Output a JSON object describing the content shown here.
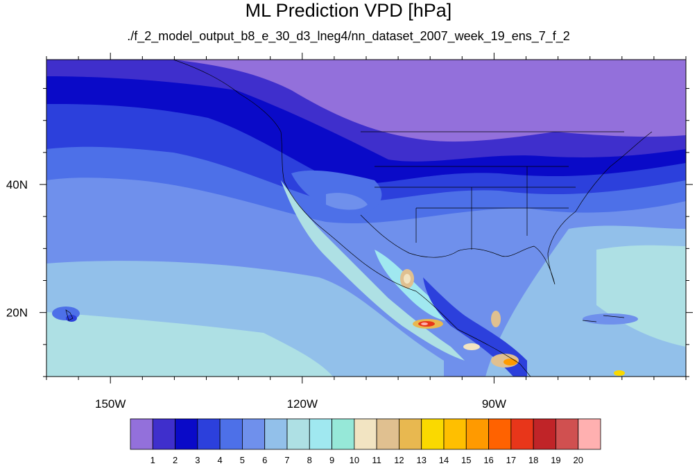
{
  "title": "ML Prediction VPD [hPa]",
  "subtitle": "./f_2_model_output_b8_e_30_d3_lneg4/nn_dataset_2007_week_19_ens_7_f_2",
  "axes": {
    "lat_labels": [
      {
        "text": "40N",
        "lat": 40
      },
      {
        "text": "20N",
        "lat": 20
      }
    ],
    "lon_labels": [
      {
        "text": "150W",
        "lon": -150
      },
      {
        "text": "120W",
        "lon": -120
      },
      {
        "text": "90W",
        "lon": -90
      }
    ],
    "lon_range": [
      -160,
      -60
    ],
    "lat_range": [
      10,
      59.5
    ]
  },
  "colorbar": {
    "colors": [
      "#9370db",
      "#3f2fcc",
      "#0a0ac8",
      "#2c40dc",
      "#4d70e8",
      "#6f90ec",
      "#92c0ea",
      "#aee0e4",
      "#a0e8f0",
      "#96e8d8",
      "#f2e4c2",
      "#e0c090",
      "#e8b850",
      "#fad900",
      "#ffbf00",
      "#ff9a00",
      "#ff6200",
      "#e8361a",
      "#c02428",
      "#d05050",
      "#ffb0b0"
    ],
    "labels": [
      "1",
      "2",
      "3",
      "4",
      "5",
      "6",
      "7",
      "8",
      "9",
      "10",
      "11",
      "12",
      "13",
      "14",
      "15",
      "16",
      "17",
      "18",
      "19",
      "20"
    ]
  }
}
